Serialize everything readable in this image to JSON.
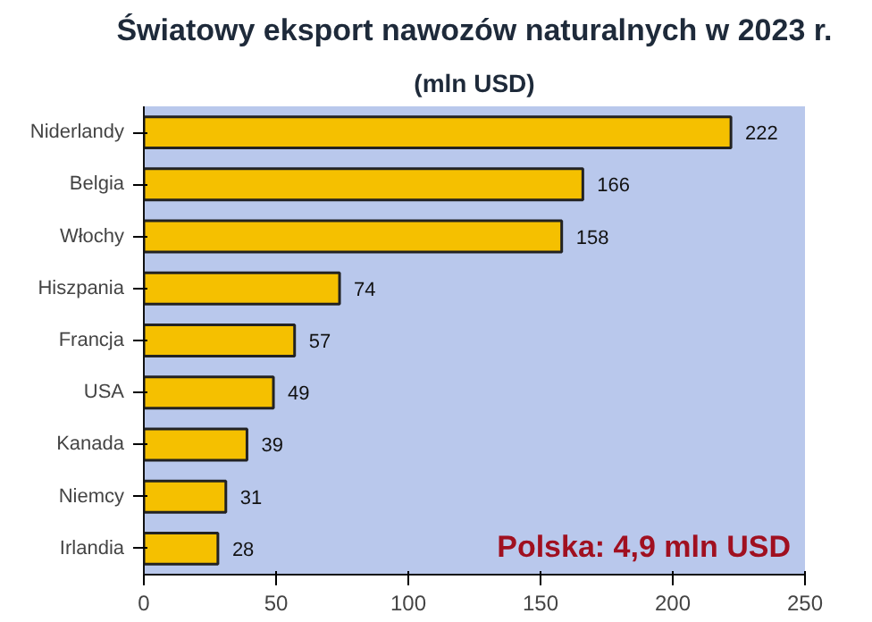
{
  "chart_data": {
    "type": "bar",
    "orientation": "horizontal",
    "title": "Światowy eksport nawozów naturalnych w 2023 r.",
    "subtitle": "(mln USD)",
    "categories": [
      "Niderlandy",
      "Belgia",
      "Włochy",
      "Hiszpania",
      "Francja",
      "USA",
      "Kanada",
      "Niemcy",
      "Irlandia"
    ],
    "values": [
      222,
      166,
      158,
      74,
      57,
      49,
      39,
      31,
      28
    ],
    "color": "#f5c000",
    "xlim": [
      0,
      250
    ],
    "xticks": [
      0,
      50,
      100,
      150,
      200,
      250
    ],
    "grid": false,
    "data_labels": true,
    "annotations": [
      "Polska: 4,9 mln USD"
    ]
  }
}
